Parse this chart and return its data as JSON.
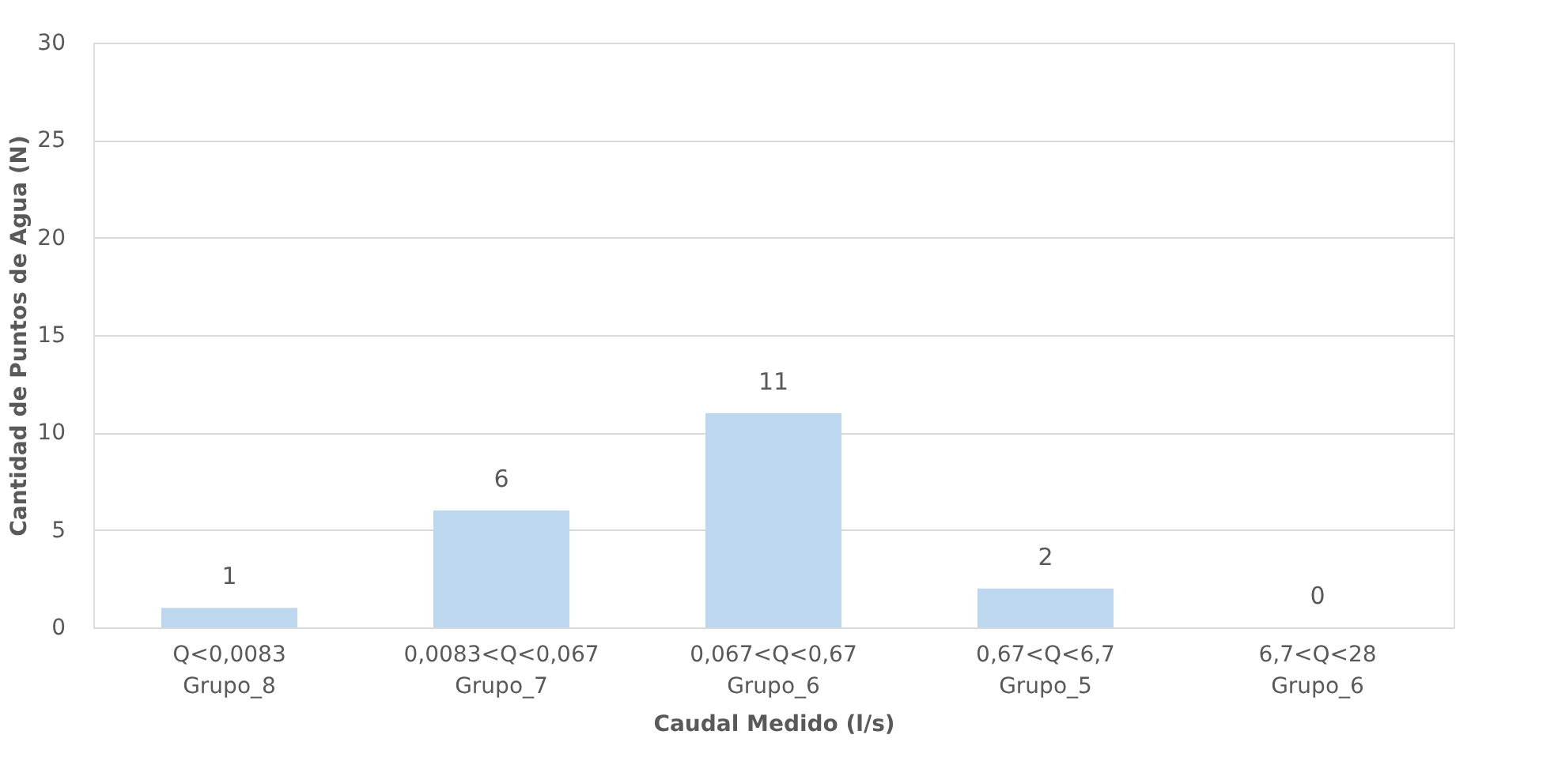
{
  "chart_data": {
    "type": "bar",
    "categories": [
      "Q<0,0083\nGrupo_8",
      "0,0083<Q<0,067\nGrupo_7",
      "0,067<Q<0,67\nGrupo_6",
      "0,67<Q<6,7\nGrupo_5",
      "6,7<Q<28\nGrupo_6"
    ],
    "values": [
      1,
      6,
      11,
      2,
      0
    ],
    "color": "#bdd7ee",
    "xlabel": "Caudal Medido (l/s)",
    "ylabel": "Cantidad de Puntos de Agua (N)",
    "ylim": [
      0,
      30
    ],
    "yticks": [
      0,
      5,
      10,
      15,
      20,
      25,
      30
    ],
    "grid": "y",
    "data_labels": true
  }
}
